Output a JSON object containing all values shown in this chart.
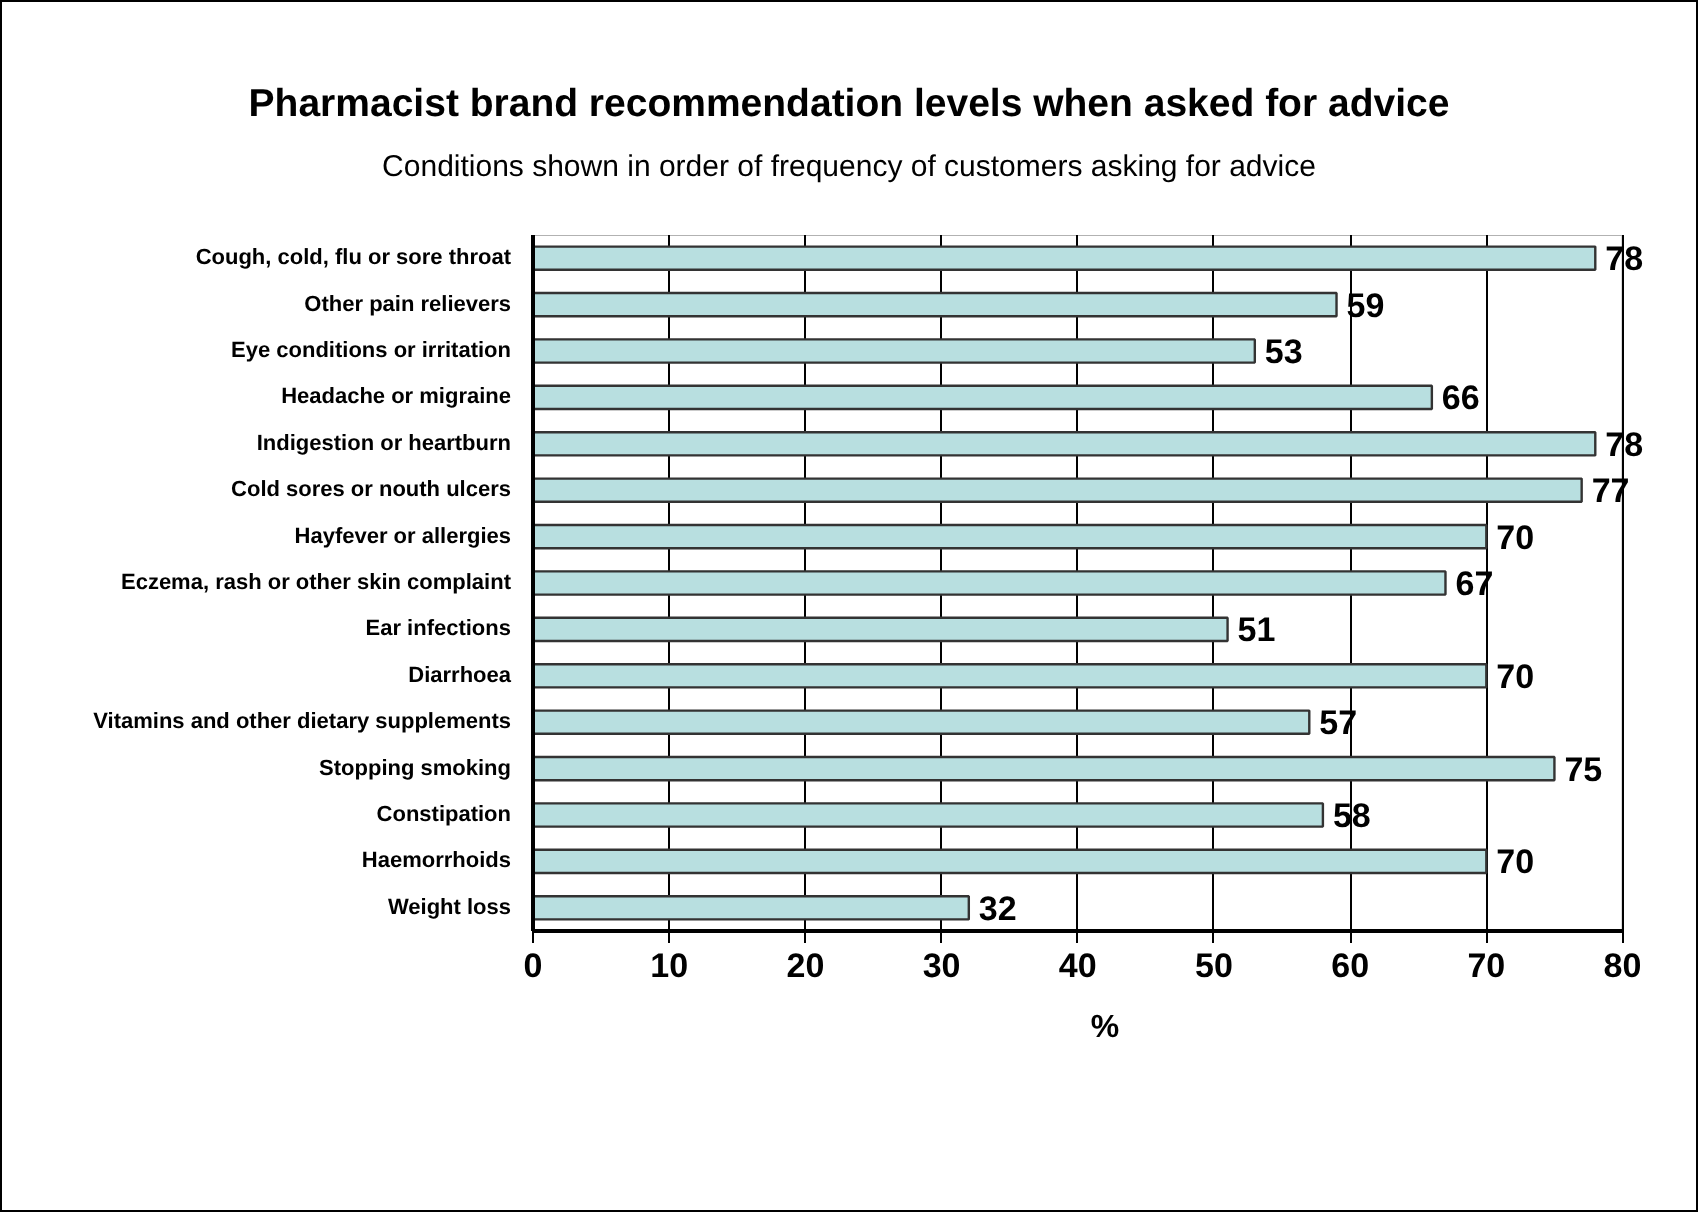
{
  "chart_data": {
    "type": "bar",
    "orientation": "horizontal",
    "title": "Pharmacist brand recommendation levels when asked for advice",
    "subtitle": "Conditions shown in order of frequency of customers asking for advice",
    "xlabel": "%",
    "categories": [
      "Cough, cold, flu or sore throat",
      "Other pain relievers",
      "Eye conditions or irritation",
      "Headache or migraine",
      "Indigestion or heartburn",
      "Cold sores or nouth ulcers",
      "Hayfever or allergies",
      "Eczema, rash or other skin complaint",
      "Ear infections",
      "Diarrhoea",
      "Vitamins and other dietary supplements",
      "Stopping smoking",
      "Constipation",
      "Haemorrhoids",
      "Weight loss"
    ],
    "values": [
      78,
      59,
      53,
      66,
      78,
      77,
      70,
      67,
      51,
      70,
      57,
      75,
      58,
      70,
      32
    ],
    "color": "#b8dfe0",
    "xlim": [
      0,
      80
    ],
    "xticks": [
      0,
      10,
      20,
      30,
      40,
      50,
      60,
      70,
      80
    ],
    "grid": "x",
    "data_labels": true
  }
}
